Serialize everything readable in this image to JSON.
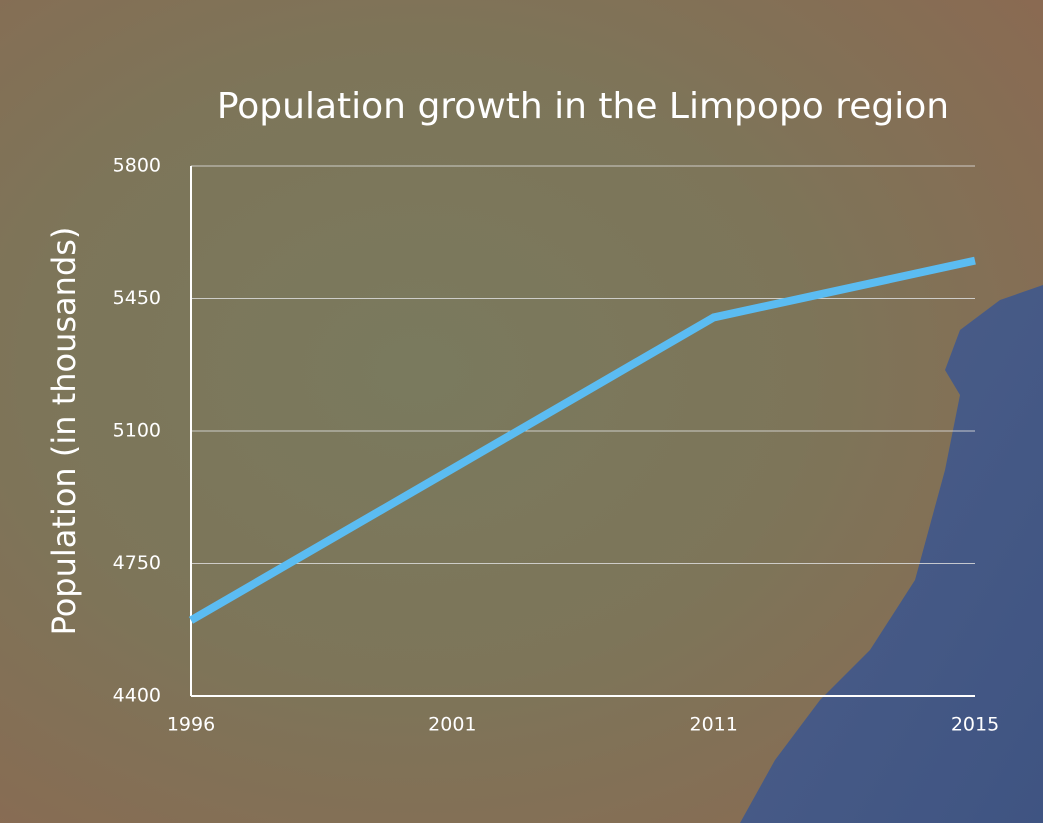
{
  "chart_data": {
    "type": "line",
    "title": "Population growth in the Limpopo region",
    "y_label": "Population (in thousands)",
    "categories": [
      "1996",
      "2001",
      "2011",
      "2015"
    ],
    "values": [
      4600,
      5000,
      5400,
      5550
    ],
    "color": "#5bbcf2",
    "ylim": [
      4400,
      5800
    ],
    "yticks": [
      4400,
      4750,
      5100,
      5450,
      5800
    ],
    "grid": true
  }
}
